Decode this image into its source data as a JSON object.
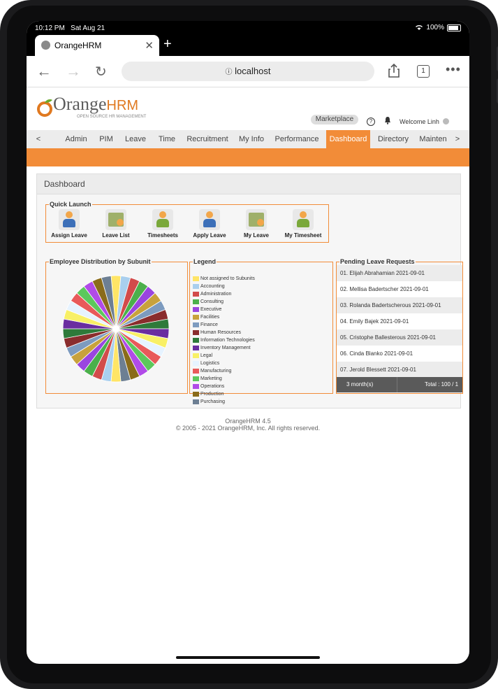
{
  "status": {
    "time": "10:12 PM",
    "date": "Sat Aug 21",
    "battery": "100%"
  },
  "browser": {
    "tab_title": "OrangeHRM",
    "url": "localhost",
    "tab_count": "1"
  },
  "header": {
    "logo_main": "Orange",
    "logo_hrm": "HRM",
    "logo_sub": "OPEN SOURCE HR MANAGEMENT",
    "marketplace": "Marketplace",
    "welcome": "Welcome Linh"
  },
  "menu": {
    "prev": "<",
    "next": ">",
    "items": [
      "Admin",
      "PIM",
      "Leave",
      "Time",
      "Recruitment",
      "My Info",
      "Performance",
      "Dashboard",
      "Directory",
      "Mainten"
    ],
    "active": "Dashboard"
  },
  "dashboard": {
    "title": "Dashboard",
    "quick_launch": {
      "title": "Quick Launch",
      "items": [
        "Assign Leave",
        "Leave List",
        "Timesheets",
        "Apply Leave",
        "My Leave",
        "My Timesheet"
      ]
    },
    "distribution": {
      "title": "Employee Distribution by Subunit"
    },
    "legend": {
      "title": "Legend",
      "items": [
        "Not assigned to Subunits",
        "Accounting",
        "Administration",
        "Consulting",
        "Executive",
        "Facilities",
        "Finance",
        "Human Resources",
        "Information Technologies",
        "Inventory Management",
        "Legal",
        "Logistics",
        "Manufacturing",
        "Marketing",
        "Operations",
        "Production",
        "Purchasing"
      ],
      "colors": [
        "#ffe566",
        "#a9cfee",
        "#d24b4b",
        "#4bb04b",
        "#9a45e0",
        "#c8a23c",
        "#7d9bbf",
        "#8a2d2d",
        "#2e7a3a",
        "#6a2ea0",
        "#f8f066",
        "#e6f3ff",
        "#e85a5a",
        "#5cc85c",
        "#b14be8",
        "#8a6b1a",
        "#6d7f93"
      ]
    },
    "pending": {
      "title": "Pending Leave Requests",
      "rows": [
        "01. Elijah Abrahamian 2021-09-01",
        "02. Mellisa Badertscher 2021-09-01",
        "03. Rolanda Badertscherous 2021-09-01",
        "04. Emily Bajek 2021-09-01",
        "05. Cristophe Ballesterous 2021-09-01",
        "06. Cinda Blanko 2021-09-01",
        "07. Jerold Blessett 2021-09-01"
      ],
      "period": "3 month(s)",
      "total": "Total : 100 / 1"
    }
  },
  "chart_data": {
    "type": "pie",
    "title": "Employee Distribution by Subunit",
    "labels": [
      "Not assigned to Subunits",
      "Accounting",
      "Administration",
      "Consulting",
      "Executive",
      "Facilities",
      "Finance",
      "Human Resources",
      "Information Technologies",
      "Inventory Management",
      "Legal",
      "Logistics",
      "Manufacturing",
      "Marketing",
      "Operations",
      "Production",
      "Purchasing"
    ],
    "values": [
      1,
      1,
      1,
      1,
      1,
      1,
      1,
      1,
      1,
      1,
      1,
      1,
      1,
      1,
      1,
      1,
      1
    ],
    "colors": [
      "#ffe566",
      "#a9cfee",
      "#d24b4b",
      "#4bb04b",
      "#9a45e0",
      "#c8a23c",
      "#7d9bbf",
      "#8a2d2d",
      "#2e7a3a",
      "#6a2ea0",
      "#f8f066",
      "#e6f3ff",
      "#e85a5a",
      "#5cc85c",
      "#b14be8",
      "#8a6b1a",
      "#6d7f93"
    ]
  },
  "footer": {
    "version": "OrangeHRM 4.5",
    "copyright": "© 2005 - 2021 OrangeHRM, Inc. All rights reserved."
  }
}
